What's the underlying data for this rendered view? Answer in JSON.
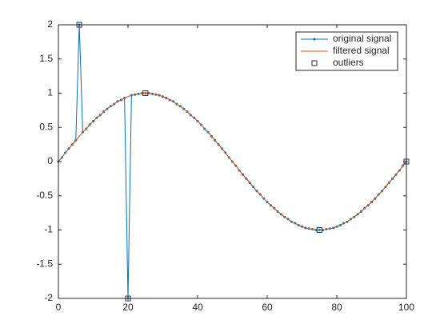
{
  "chart_data": {
    "type": "line",
    "x": [
      0,
      1,
      2,
      3,
      4,
      5,
      6,
      7,
      8,
      9,
      10,
      11,
      12,
      13,
      14,
      15,
      16,
      17,
      18,
      19,
      20,
      21,
      22,
      23,
      24,
      25,
      26,
      27,
      28,
      29,
      30,
      31,
      32,
      33,
      34,
      35,
      36,
      37,
      38,
      39,
      40,
      41,
      42,
      43,
      44,
      45,
      46,
      47,
      48,
      49,
      50,
      51,
      52,
      53,
      54,
      55,
      56,
      57,
      58,
      59,
      60,
      61,
      62,
      63,
      64,
      65,
      66,
      67,
      68,
      69,
      70,
      71,
      72,
      73,
      74,
      75,
      76,
      77,
      78,
      79,
      80,
      81,
      82,
      83,
      84,
      85,
      86,
      87,
      88,
      89,
      90,
      91,
      92,
      93,
      94,
      95,
      96,
      97,
      98,
      99,
      100
    ],
    "series": [
      {
        "name": "original signal",
        "color": "#0072bd",
        "marker": "dot",
        "values": [
          0,
          0.06,
          0.13,
          0.19,
          0.25,
          0.31,
          2,
          0.43,
          0.48,
          0.54,
          0.59,
          0.64,
          0.68,
          0.73,
          0.77,
          0.81,
          0.84,
          0.88,
          0.9,
          0.93,
          -2,
          0.97,
          0.98,
          0.99,
          1,
          1,
          1,
          0.99,
          0.98,
          0.97,
          0.95,
          0.93,
          0.9,
          0.88,
          0.84,
          0.81,
          0.77,
          0.73,
          0.68,
          0.64,
          0.59,
          0.54,
          0.48,
          0.43,
          0.37,
          0.31,
          0.25,
          0.19,
          0.13,
          0.06,
          0,
          -0.06,
          -0.13,
          -0.19,
          -0.25,
          -0.31,
          -0.37,
          -0.43,
          -0.48,
          -0.54,
          -0.59,
          -0.64,
          -0.68,
          -0.73,
          -0.77,
          -0.81,
          -0.84,
          -0.88,
          -0.9,
          -0.93,
          -0.95,
          -0.97,
          -0.98,
          -0.99,
          -1,
          -1,
          -1,
          -0.99,
          -0.98,
          -0.97,
          -0.95,
          -0.93,
          -0.9,
          -0.88,
          -0.84,
          -0.81,
          -0.77,
          -0.73,
          -0.68,
          -0.64,
          -0.59,
          -0.54,
          -0.48,
          -0.43,
          -0.37,
          -0.31,
          -0.25,
          -0.19,
          -0.13,
          -0.06,
          0
        ]
      },
      {
        "name": "filtered signal",
        "color": "#d95319",
        "values": [
          0,
          0.06,
          0.13,
          0.19,
          0.25,
          0.31,
          0.37,
          0.43,
          0.48,
          0.54,
          0.59,
          0.64,
          0.68,
          0.73,
          0.77,
          0.81,
          0.84,
          0.88,
          0.9,
          0.93,
          0.95,
          0.97,
          0.98,
          0.99,
          1,
          1,
          1,
          0.99,
          0.98,
          0.97,
          0.95,
          0.93,
          0.9,
          0.88,
          0.84,
          0.81,
          0.77,
          0.73,
          0.68,
          0.64,
          0.59,
          0.54,
          0.48,
          0.43,
          0.37,
          0.31,
          0.25,
          0.19,
          0.13,
          0.06,
          0,
          -0.06,
          -0.13,
          -0.19,
          -0.25,
          -0.31,
          -0.37,
          -0.43,
          -0.48,
          -0.54,
          -0.59,
          -0.64,
          -0.68,
          -0.73,
          -0.77,
          -0.81,
          -0.84,
          -0.88,
          -0.9,
          -0.93,
          -0.95,
          -0.97,
          -0.98,
          -0.99,
          -1,
          -1,
          -1,
          -0.99,
          -0.98,
          -0.97,
          -0.95,
          -0.93,
          -0.9,
          -0.88,
          -0.84,
          -0.81,
          -0.77,
          -0.73,
          -0.68,
          -0.64,
          -0.59,
          -0.54,
          -0.48,
          -0.43,
          -0.37,
          -0.31,
          -0.25,
          -0.19,
          -0.13,
          -0.06,
          0
        ]
      },
      {
        "name": "outliers",
        "color": "#2a2a3a",
        "marker": "square",
        "type": "scatter",
        "x": [
          6,
          20,
          25,
          75,
          100
        ],
        "values": [
          2,
          -2,
          1,
          -1,
          0
        ]
      }
    ],
    "xlim": [
      0,
      100
    ],
    "xticks": [
      0,
      20,
      40,
      60,
      80,
      100
    ],
    "ylim": [
      -2,
      2
    ],
    "yticks": [
      -2,
      -1.5,
      -1,
      -0.5,
      0,
      0.5,
      1,
      1.5,
      2
    ],
    "legend": "northeast"
  }
}
